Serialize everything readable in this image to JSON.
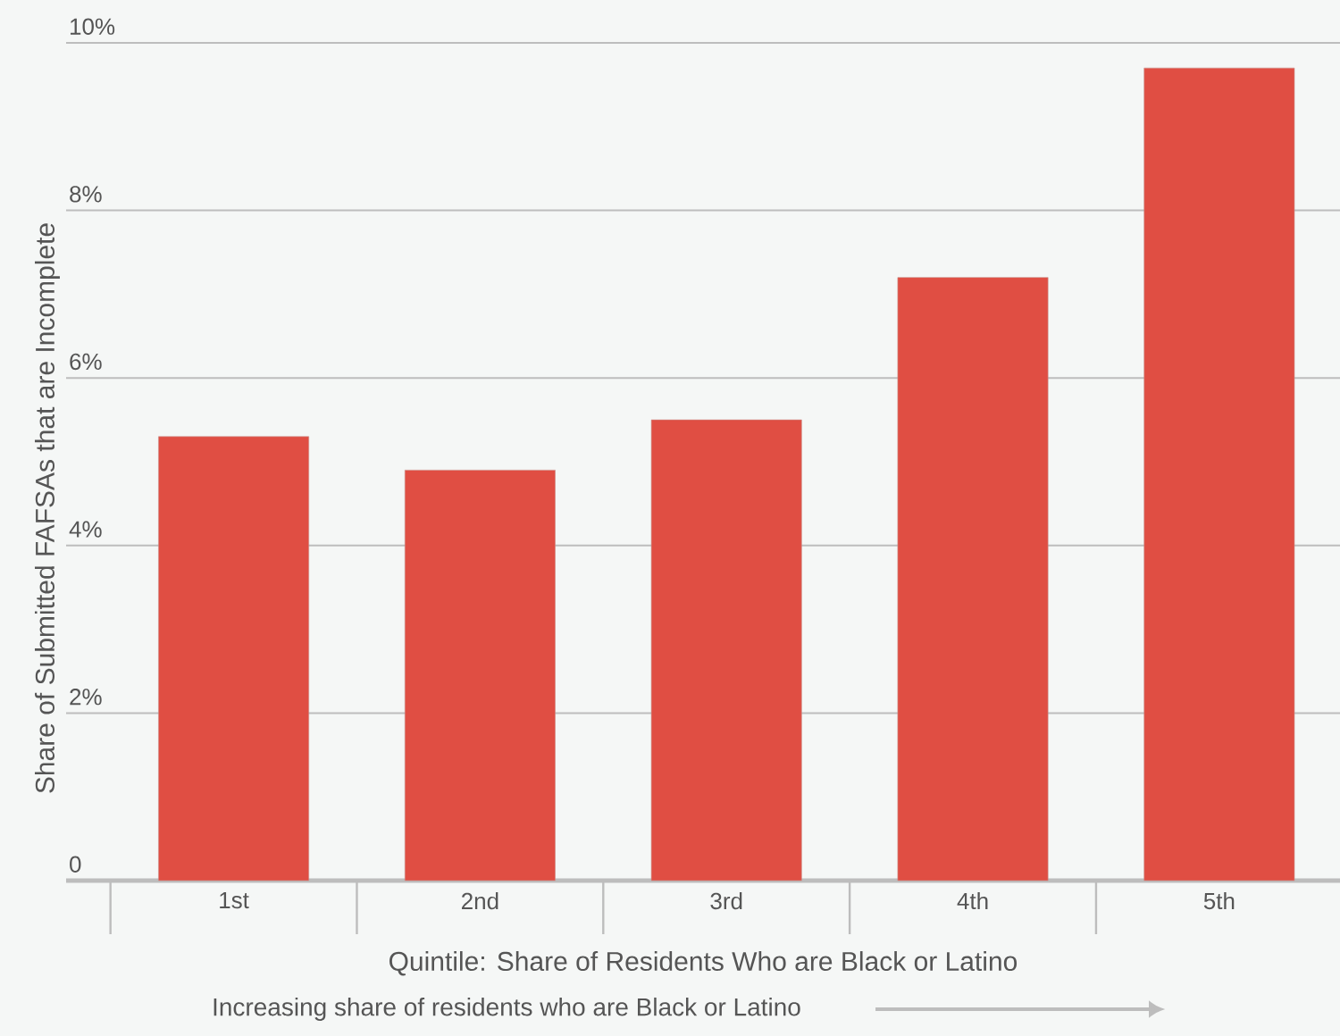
{
  "chart_data": {
    "type": "bar",
    "xlabel": "Quintile: Share of Residents Who are Black or Latino",
    "ylabel": "Share of Submitted FAFSAs that are Incomplete",
    "categories": [
      "1st",
      "2nd",
      "3rd",
      "4th",
      "5th"
    ],
    "values": [
      5.3,
      4.9,
      5.5,
      7.2,
      9.7
    ],
    "color": "#e04e43",
    "ylim": [
      0,
      10
    ],
    "yticks": [
      {
        "value": 0,
        "label": "0"
      },
      {
        "value": 2,
        "label": "2%"
      },
      {
        "value": 4,
        "label": "4%"
      },
      {
        "value": 6,
        "label": "6%"
      },
      {
        "value": 8,
        "label": "8%"
      },
      {
        "value": 10,
        "label": "10%"
      }
    ],
    "grid": "y",
    "annotations": [
      "Increasing share of residents who are Black or Latino"
    ]
  }
}
